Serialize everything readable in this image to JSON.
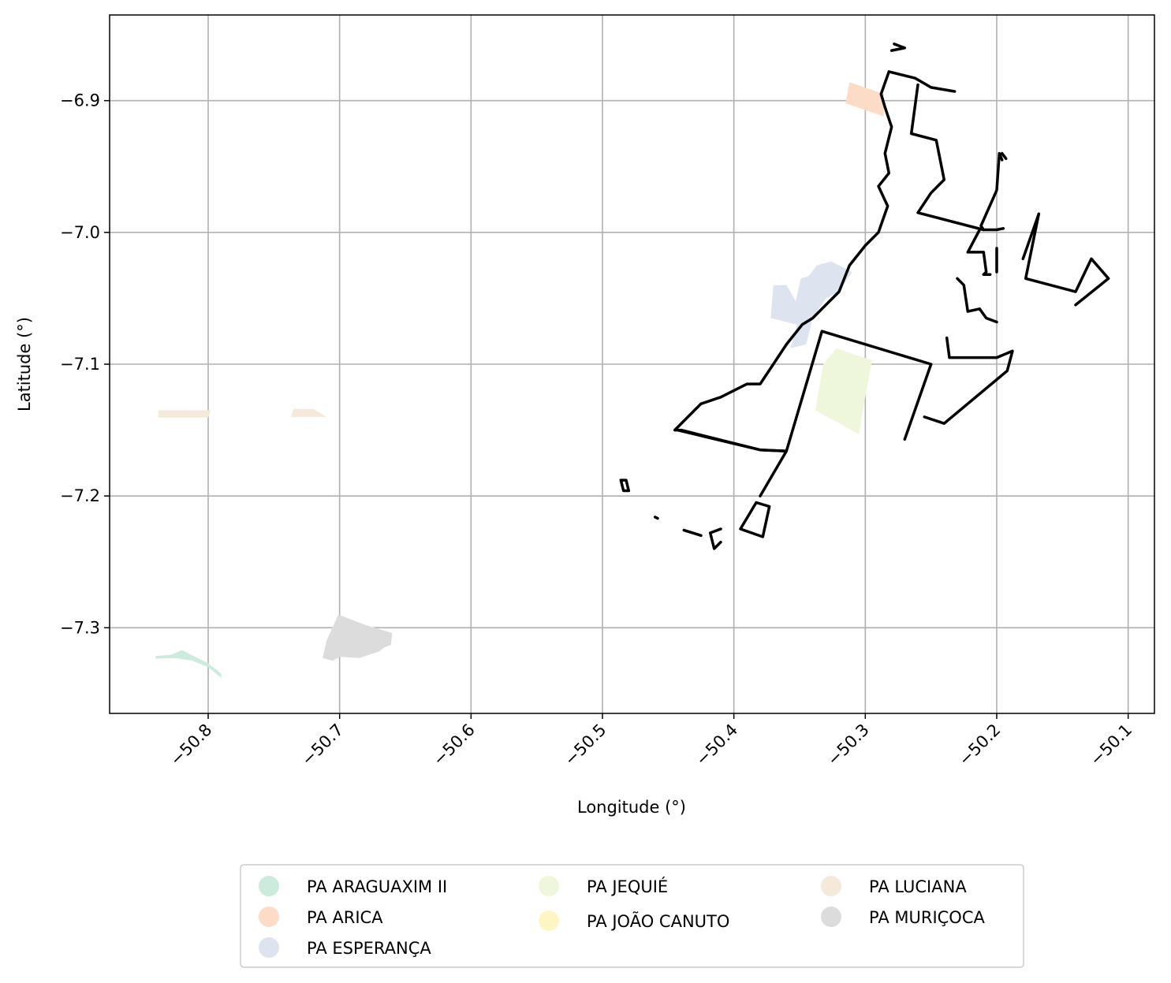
{
  "chart_data": {
    "type": "map",
    "xlabel": "Longitude (°)",
    "ylabel": "Latitude (°)",
    "xlim": [
      -50.875,
      -50.08
    ],
    "ylim": [
      -7.365,
      -6.835
    ],
    "x_ticks": [
      {
        "value": -50.8,
        "label": "−50.8"
      },
      {
        "value": -50.7,
        "label": "−50.7"
      },
      {
        "value": -50.6,
        "label": "−50.6"
      },
      {
        "value": -50.5,
        "label": "−50.5"
      },
      {
        "value": -50.4,
        "label": "−50.4"
      },
      {
        "value": -50.3,
        "label": "−50.3"
      },
      {
        "value": -50.2,
        "label": "−50.2"
      },
      {
        "value": -50.1,
        "label": "−50.1"
      }
    ],
    "y_ticks": [
      {
        "value": -6.9,
        "label": "−6.9"
      },
      {
        "value": -7.0,
        "label": "−7.0"
      },
      {
        "value": -7.1,
        "label": "−7.1"
      },
      {
        "value": -7.2,
        "label": "−7.2"
      },
      {
        "value": -7.3,
        "label": "−7.3"
      }
    ],
    "grid": true,
    "legend_position": "bottom-center",
    "series": [
      {
        "name": "PA ARAGUAXIM II",
        "color": "#cdebdc",
        "polygons": [
          [
            [
              -50.84,
              -7.3215
            ],
            [
              -50.828,
              -7.3205
            ],
            [
              -50.82,
              -7.317
            ],
            [
              -50.81,
              -7.322
            ],
            [
              -50.8,
              -7.327
            ],
            [
              -50.79,
              -7.335
            ],
            [
              -50.79,
              -7.338
            ],
            [
              -50.8,
              -7.33
            ],
            [
              -50.812,
              -7.325
            ],
            [
              -50.825,
              -7.323
            ],
            [
              -50.84,
              -7.3235
            ]
          ]
        ]
      },
      {
        "name": "PA ARICA",
        "color": "#fcdcc7",
        "polygons": [
          [
            [
              -50.312,
              -6.886
            ],
            [
              -50.286,
              -6.895
            ],
            [
              -50.286,
              -6.912
            ],
            [
              -50.315,
              -6.902
            ]
          ]
        ]
      },
      {
        "name": "PA ESPERANÇA",
        "color": "#dee3f0",
        "polygons": [
          [
            [
              -50.353,
              -7.052
            ],
            [
              -50.349,
              -7.035
            ],
            [
              -50.343,
              -7.033
            ],
            [
              -50.337,
              -7.025
            ],
            [
              -50.326,
              -7.022
            ],
            [
              -50.31,
              -7.03
            ],
            [
              -50.32,
              -7.045
            ],
            [
              -50.33,
              -7.05
            ],
            [
              -50.34,
              -7.065
            ],
            [
              -50.345,
              -7.085
            ],
            [
              -50.357,
              -7.088
            ],
            [
              -50.352,
              -7.07
            ],
            [
              -50.372,
              -7.065
            ],
            [
              -50.37,
              -7.04
            ],
            [
              -50.36,
              -7.04
            ]
          ]
        ]
      },
      {
        "name": "PA JEQUIÉ",
        "color": "#eef7dc",
        "polygons": [
          [
            [
              -50.322,
              -7.088
            ],
            [
              -50.295,
              -7.097
            ],
            [
              -50.305,
              -7.153
            ],
            [
              -50.338,
              -7.135
            ],
            [
              -50.332,
              -7.1
            ]
          ]
        ]
      },
      {
        "name": "PA JOÃO CANUTO",
        "color": "#fef5c4",
        "polygons": []
      },
      {
        "name": "PA LUCIANA",
        "color": "#f5e9da",
        "polygons": [
          [
            [
              -50.838,
              -7.135
            ],
            [
              -50.798,
              -7.135
            ],
            [
              -50.8,
              -7.1405
            ],
            [
              -50.838,
              -7.1405
            ]
          ],
          [
            [
              -50.735,
              -7.134
            ],
            [
              -50.72,
              -7.134
            ],
            [
              -50.71,
              -7.14
            ],
            [
              -50.737,
              -7.14
            ]
          ]
        ]
      },
      {
        "name": "PA MURIÇOCA",
        "color": "#dcdcdc",
        "polygons": [
          [
            [
              -50.701,
              -7.29
            ],
            [
              -50.68,
              -7.298
            ],
            [
              -50.66,
              -7.304
            ],
            [
              -50.661,
              -7.313
            ],
            [
              -50.666,
              -7.315
            ],
            [
              -50.67,
              -7.318
            ],
            [
              -50.685,
              -7.323
            ],
            [
              -50.7,
              -7.322
            ],
            [
              -50.705,
              -7.325
            ],
            [
              -50.713,
              -7.323
            ],
            [
              -50.71,
              -7.31
            ]
          ]
        ]
      }
    ],
    "outline": {
      "color": "#000000",
      "paths": [
        [
          [
            -50.282,
            -6.878
          ],
          [
            -50.288,
            -6.895
          ],
          [
            -50.285,
            -6.905
          ],
          [
            -50.28,
            -6.92
          ],
          [
            -50.285,
            -6.94
          ],
          [
            -50.282,
            -6.955
          ],
          [
            -50.29,
            -6.965
          ],
          [
            -50.283,
            -6.98
          ],
          [
            -50.29,
            -7.0
          ],
          [
            -50.3,
            -7.01
          ],
          [
            -50.312,
            -7.025
          ],
          [
            -50.32,
            -7.045
          ],
          [
            -50.33,
            -7.055
          ],
          [
            -50.34,
            -7.065
          ],
          [
            -50.348,
            -7.07
          ],
          [
            -50.36,
            -7.085
          ],
          [
            -50.37,
            -7.1
          ],
          [
            -50.38,
            -7.115
          ],
          [
            -50.39,
            -7.115
          ],
          [
            -50.4,
            -7.12
          ],
          [
            -50.41,
            -7.125
          ],
          [
            -50.425,
            -7.13
          ],
          [
            -50.43,
            -7.135
          ],
          [
            -50.445,
            -7.15
          ],
          [
            -50.44,
            -7.15
          ],
          [
            -50.38,
            -7.165
          ],
          [
            -50.36,
            -7.166
          ],
          [
            -50.38,
            -7.2
          ]
        ],
        [
          [
            -50.443,
            -7.15
          ],
          [
            -50.38,
            -7.165
          ],
          [
            -50.36,
            -7.166
          ],
          [
            -50.333,
            -7.075
          ],
          [
            -50.25,
            -7.1
          ],
          [
            -50.27,
            -7.157
          ]
        ],
        [
          [
            -50.282,
            -6.878
          ],
          [
            -50.262,
            -6.883
          ],
          [
            -50.25,
            -6.89
          ],
          [
            -50.232,
            -6.893
          ]
        ],
        [
          [
            -50.26,
            -6.888
          ],
          [
            -50.265,
            -6.925
          ],
          [
            -50.246,
            -6.93
          ],
          [
            -50.24,
            -6.96
          ],
          [
            -50.25,
            -6.97
          ],
          [
            -50.26,
            -6.985
          ],
          [
            -50.21,
            -6.998
          ],
          [
            -50.212,
            -6.995
          ],
          [
            -50.2,
            -6.968
          ],
          [
            -50.198,
            -6.94
          ],
          [
            -50.196,
            -6.945
          ]
        ],
        [
          [
            -50.21,
            -6.998
          ],
          [
            -50.2,
            -6.998
          ],
          [
            -50.195,
            -6.997
          ]
        ],
        [
          [
            -50.213,
            -6.998
          ],
          [
            -50.222,
            -7.015
          ],
          [
            -50.21,
            -7.015
          ],
          [
            -50.208,
            -7.03
          ],
          [
            -50.21,
            -7.032
          ],
          [
            -50.205,
            -7.032
          ]
        ],
        [
          [
            -50.2,
            -7.012
          ],
          [
            -50.2,
            -7.03
          ]
        ],
        [
          [
            -50.23,
            -7.035
          ],
          [
            -50.225,
            -7.04
          ],
          [
            -50.222,
            -7.06
          ],
          [
            -50.213,
            -7.058
          ],
          [
            -50.208,
            -7.065
          ],
          [
            -50.2,
            -7.068
          ]
        ],
        [
          [
            -50.238,
            -7.08
          ],
          [
            -50.236,
            -7.095
          ],
          [
            -50.2,
            -7.095
          ],
          [
            -50.188,
            -7.09
          ],
          [
            -50.192,
            -7.105
          ],
          [
            -50.24,
            -7.145
          ],
          [
            -50.255,
            -7.14
          ]
        ],
        [
          [
            -50.168,
            -6.986
          ],
          [
            -50.178,
            -7.035
          ],
          [
            -50.14,
            -7.045
          ],
          [
            -50.128,
            -7.02
          ],
          [
            -50.115,
            -7.035
          ],
          [
            -50.14,
            -7.055
          ]
        ],
        [
          [
            -50.168,
            -6.986
          ],
          [
            -50.18,
            -7.02
          ]
        ],
        [
          [
            -50.383,
            -7.205
          ],
          [
            -50.373,
            -7.208
          ],
          [
            -50.378,
            -7.231
          ],
          [
            -50.395,
            -7.225
          ],
          [
            -50.383,
            -7.205
          ]
        ],
        [
          [
            -50.486,
            -7.188
          ],
          [
            -50.482,
            -7.188
          ],
          [
            -50.48,
            -7.196
          ],
          [
            -50.484,
            -7.196
          ],
          [
            -50.486,
            -7.188
          ]
        ],
        [
          [
            -50.438,
            -7.226
          ],
          [
            -50.425,
            -7.23
          ]
        ],
        [
          [
            -50.41,
            -7.225
          ],
          [
            -50.418,
            -7.228
          ],
          [
            -50.415,
            -7.24
          ],
          [
            -50.41,
            -7.235
          ]
        ],
        [
          [
            -50.46,
            -7.216
          ],
          [
            -50.458,
            -7.217
          ]
        ],
        [
          [
            -50.278,
            -6.857
          ],
          [
            -50.27,
            -6.86
          ],
          [
            -50.28,
            -6.862
          ]
        ],
        [
          [
            -50.196,
            -6.94
          ],
          [
            -50.193,
            -6.944
          ]
        ]
      ]
    },
    "legend": [
      {
        "label": "PA ARAGUAXIM II",
        "color": "#cdebdc"
      },
      {
        "label": "PA ARICA",
        "color": "#fcdcc7"
      },
      {
        "label": "PA ESPERANÇA",
        "color": "#dee3f0"
      },
      {
        "label": "PA JEQUIÉ",
        "color": "#eef7dc"
      },
      {
        "label": "PA JOÃO CANUTO",
        "color": "#fef5c4"
      },
      {
        "label": "PA LUCIANA",
        "color": "#f5e9da"
      },
      {
        "label": "PA MURIÇOCA",
        "color": "#dcdcdc"
      }
    ]
  }
}
